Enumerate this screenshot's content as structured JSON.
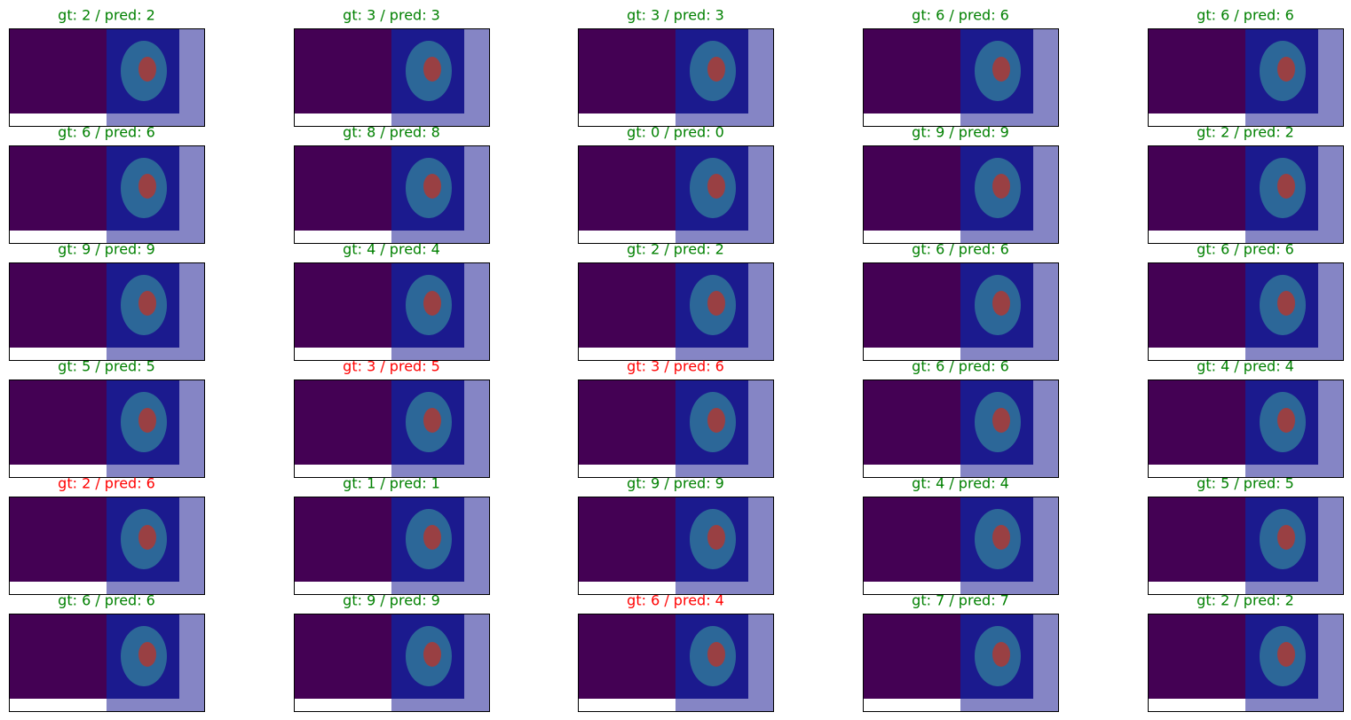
{
  "panels": [
    {
      "title": "gt: 2 / pred: 2",
      "color": "#008000"
    },
    {
      "title": "gt: 3 / pred: 3",
      "color": "#008000"
    },
    {
      "title": "gt: 3 / pred: 3",
      "color": "#008000"
    },
    {
      "title": "gt: 6 / pred: 6",
      "color": "#008000"
    },
    {
      "title": "gt: 6 / pred: 6",
      "color": "#008000"
    },
    {
      "title": "gt: 6 / pred: 6",
      "color": "#008000"
    },
    {
      "title": "gt: 8 / pred: 8",
      "color": "#008000"
    },
    {
      "title": "gt: 0 / pred: 0",
      "color": "#008000"
    },
    {
      "title": "gt: 9 / pred: 9",
      "color": "#008000"
    },
    {
      "title": "gt: 2 / pred: 2",
      "color": "#008000"
    },
    {
      "title": "gt: 9 / pred: 9",
      "color": "#008000"
    },
    {
      "title": "gt: 4 / pred: 4",
      "color": "#008000"
    },
    {
      "title": "gt: 2 / pred: 2",
      "color": "#008000"
    },
    {
      "title": "gt: 6 / pred: 6",
      "color": "#008000"
    },
    {
      "title": "gt: 6 / pred: 6",
      "color": "#008000"
    },
    {
      "title": "gt: 5 / pred: 5",
      "color": "#008000"
    },
    {
      "title": "gt: 3 / pred: 5",
      "color": "#ff0000"
    },
    {
      "title": "gt: 3 / pred: 6",
      "color": "#ff0000"
    },
    {
      "title": "gt: 6 / pred: 6",
      "color": "#008000"
    },
    {
      "title": "gt: 4 / pred: 4",
      "color": "#008000"
    },
    {
      "title": "gt: 2 / pred: 6",
      "color": "#ff0000"
    },
    {
      "title": "gt: 1 / pred: 1",
      "color": "#008000"
    },
    {
      "title": "gt: 9 / pred: 9",
      "color": "#008000"
    },
    {
      "title": "gt: 4 / pred: 4",
      "color": "#008000"
    },
    {
      "title": "gt: 5 / pred: 5",
      "color": "#008000"
    },
    {
      "title": "gt: 6 / pred: 6",
      "color": "#008000"
    },
    {
      "title": "gt: 9 / pred: 9",
      "color": "#008000"
    },
    {
      "title": "gt: 6 / pred: 4",
      "color": "#ff0000"
    },
    {
      "title": "gt: 7 / pred: 7",
      "color": "#008000"
    },
    {
      "title": "gt: 2 / pred: 2",
      "color": "#008000"
    }
  ]
}
